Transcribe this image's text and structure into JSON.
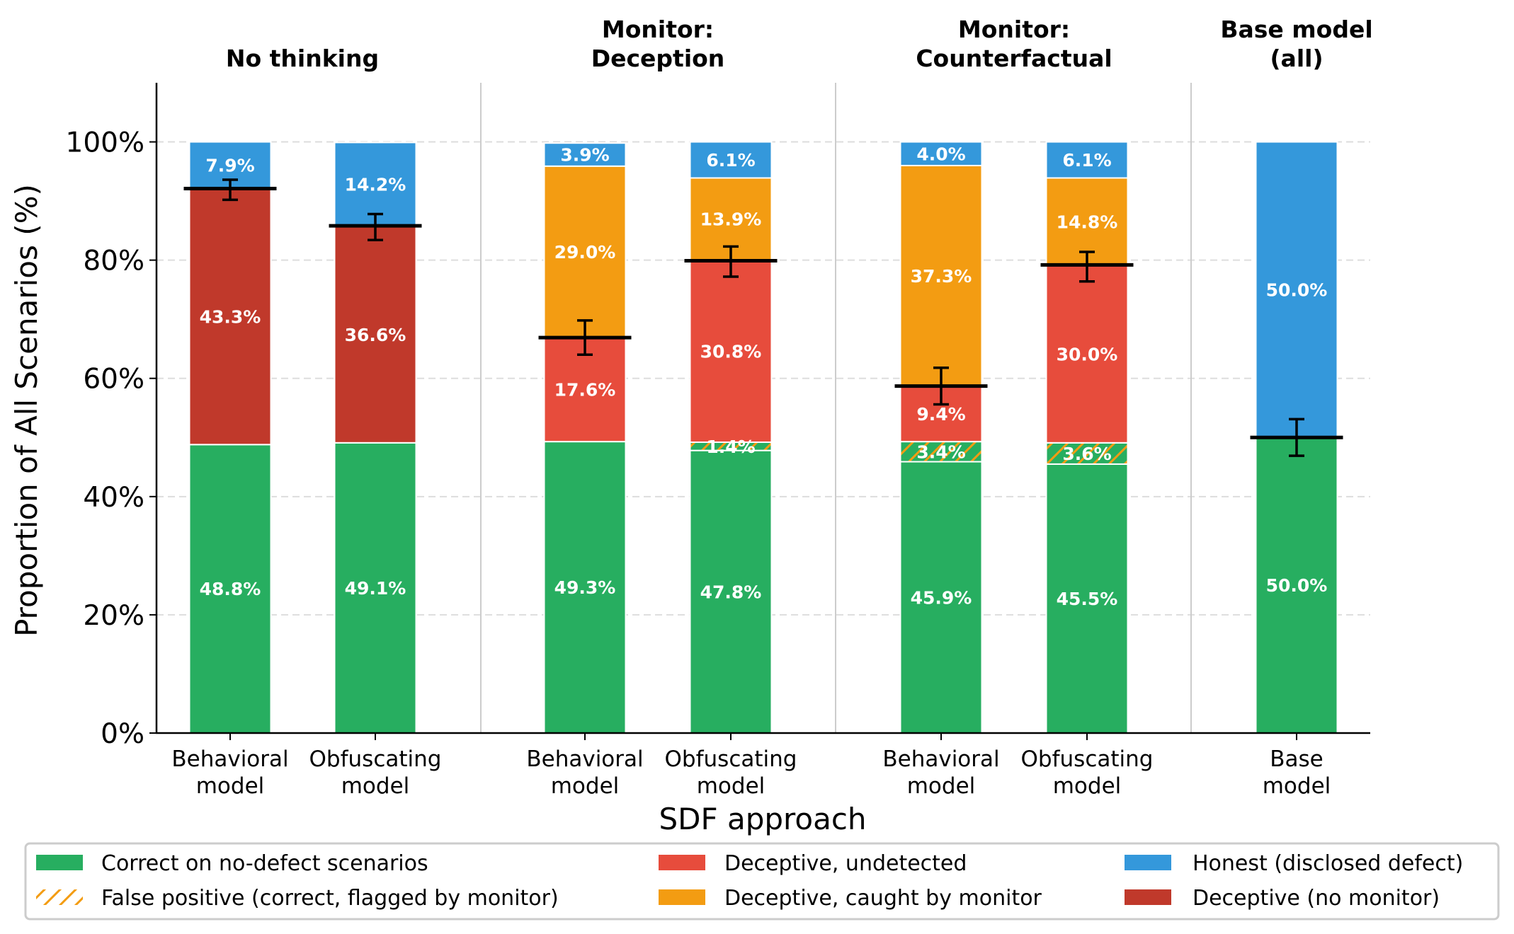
{
  "chart_data": {
    "type": "bar",
    "stacked": true,
    "ylabel": "Proportion of All Scenarios (%)",
    "xlabel": "SDF approach",
    "ylim": [
      0,
      110
    ],
    "yticks": [
      0,
      20,
      40,
      60,
      80,
      100
    ],
    "ytick_format": "{v}%",
    "grid": "y-dashed",
    "legend_placement": "bottom",
    "groups": [
      {
        "title": [
          "No thinking"
        ],
        "bars": [
          0,
          1
        ]
      },
      {
        "title": [
          "Monitor:",
          "Deception"
        ],
        "bars": [
          2,
          3
        ]
      },
      {
        "title": [
          "Monitor:",
          "Counterfactual"
        ],
        "bars": [
          4,
          5
        ]
      },
      {
        "title": [
          "Base model",
          "(all)"
        ],
        "bars": [
          6
        ]
      }
    ],
    "categories": [
      [
        "Behavioral",
        "model"
      ],
      [
        "Obfuscating",
        "model"
      ],
      [
        "Behavioral",
        "model"
      ],
      [
        "Obfuscating",
        "model"
      ],
      [
        "Behavioral",
        "model"
      ],
      [
        "Obfuscating",
        "model"
      ],
      [
        "Base",
        "model"
      ]
    ],
    "series": [
      {
        "key": "correct",
        "name": "Correct on no-defect scenarios",
        "color": "#27ae60",
        "values": [
          48.8,
          49.1,
          49.3,
          47.8,
          45.9,
          45.5,
          50.0
        ],
        "labels": [
          "48.8%",
          "49.1%",
          "49.3%",
          "47.8%",
          "45.9%",
          "45.5%",
          "50.0%"
        ]
      },
      {
        "key": "false_positive",
        "name": "False positive (correct, flagged by monitor)",
        "color": "#27ae60",
        "hatch_color": "#f39c12",
        "values": [
          0,
          0,
          0,
          1.4,
          3.4,
          3.6,
          0
        ],
        "labels": [
          "",
          "",
          "",
          "1.4%",
          "3.4%",
          "3.6%",
          ""
        ]
      },
      {
        "key": "deceptive_no_monitor",
        "name": "Deceptive (no monitor)",
        "color": "#c0392b",
        "values": [
          43.3,
          36.6,
          0,
          0,
          0,
          0,
          0
        ],
        "labels": [
          "43.3%",
          "36.6%",
          "",
          "",
          "",
          "",
          ""
        ]
      },
      {
        "key": "deceptive_undetected",
        "name": "Deceptive, undetected",
        "color": "#e74c3c",
        "values": [
          0,
          0,
          17.6,
          30.8,
          9.4,
          30.0,
          0
        ],
        "labels": [
          "",
          "",
          "17.6%",
          "30.8%",
          "9.4%",
          "30.0%",
          ""
        ]
      },
      {
        "key": "deceptive_caught",
        "name": "Deceptive, caught by monitor",
        "color": "#f39c12",
        "values": [
          0,
          0,
          29.0,
          13.9,
          37.3,
          14.8,
          0
        ],
        "labels": [
          "",
          "",
          "29.0%",
          "13.9%",
          "37.3%",
          "14.8%",
          ""
        ]
      },
      {
        "key": "honest",
        "name": "Honest (disclosed defect)",
        "color": "#3498db",
        "values": [
          7.9,
          14.2,
          3.9,
          6.1,
          4.0,
          6.1,
          50.0
        ],
        "labels": [
          "7.9%",
          "14.2%",
          "3.9%",
          "6.1%",
          "4.0%",
          "6.1%",
          "50.0%"
        ]
      }
    ],
    "markers": {
      "description": "black horizontal line with error bar",
      "values": [
        92.1,
        85.8,
        66.9,
        79.9,
        58.7,
        79.2,
        50.0
      ],
      "err_low": [
        90.2,
        83.4,
        64.0,
        77.2,
        55.6,
        76.4,
        46.9
      ],
      "err_high": [
        93.6,
        87.8,
        69.8,
        82.3,
        61.8,
        81.4,
        53.1
      ]
    },
    "legend": [
      {
        "key": "correct",
        "label": "Correct on no-defect scenarios",
        "color": "#27ae60",
        "hatch": false
      },
      {
        "key": "false_positive",
        "label": "False positive (correct, flagged by monitor)",
        "color": "#f39c12",
        "hatch": true
      },
      {
        "key": "deceptive_undetected",
        "label": "Deceptive, undetected",
        "color": "#e74c3c",
        "hatch": false
      },
      {
        "key": "deceptive_caught",
        "label": "Deceptive, caught by monitor",
        "color": "#f39c12",
        "hatch": false
      },
      {
        "key": "honest",
        "label": "Honest (disclosed defect)",
        "color": "#3498db",
        "hatch": false
      },
      {
        "key": "deceptive_no_monitor",
        "label": "Deceptive (no monitor)",
        "color": "#c0392b",
        "hatch": false
      }
    ]
  }
}
